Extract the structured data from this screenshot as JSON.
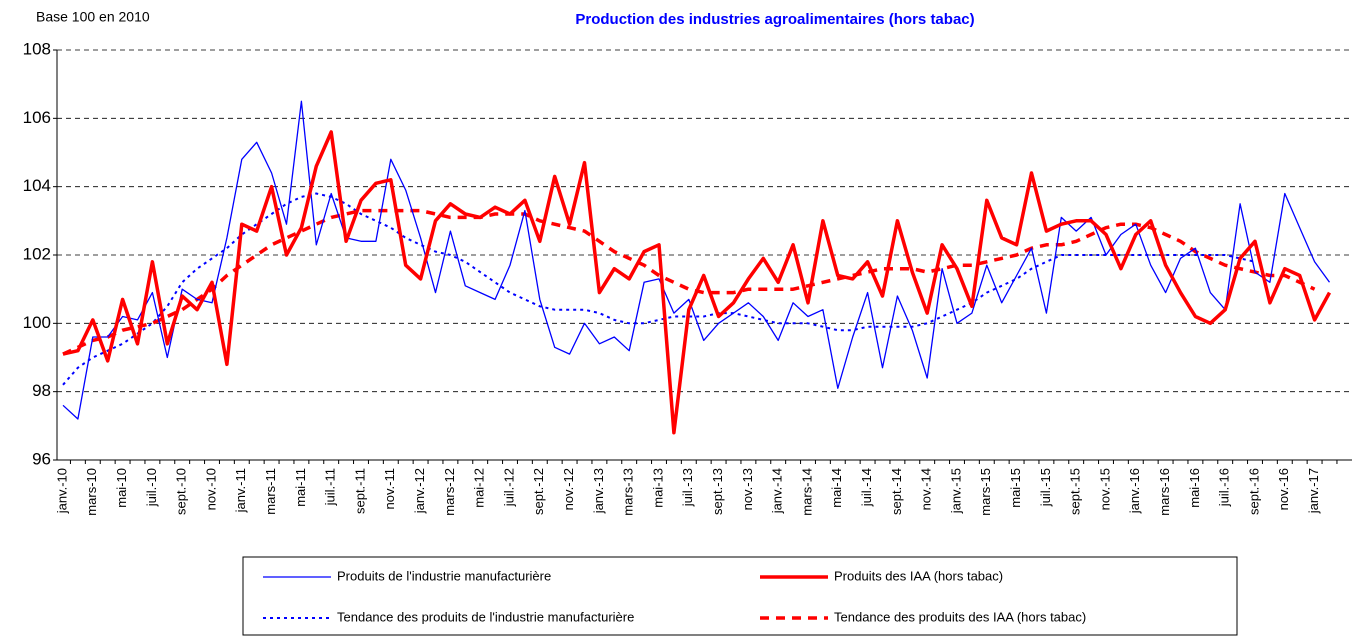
{
  "chart_data": {
    "type": "line",
    "title": "Production des industries agroalimentaires (hors tabac)",
    "y_label": "Base 100 en 2010",
    "categories": [
      "janv.-10",
      null,
      "mars-10",
      null,
      "mai-10",
      null,
      "juil.-10",
      null,
      "sept.-10",
      null,
      "nov.-10",
      null,
      "janv.-11",
      null,
      "mars-11",
      null,
      "mai-11",
      null,
      "juil.-11",
      null,
      "sept.-11",
      null,
      "nov.-11",
      null,
      "janv.-12",
      null,
      "mars-12",
      null,
      "mai-12",
      null,
      "juil.-12",
      null,
      "sept.-12",
      null,
      "nov.-12",
      null,
      "janv.-13",
      null,
      "mars-13",
      null,
      "mai-13",
      null,
      "juil.-13",
      null,
      "sept.-13",
      null,
      "nov.-13",
      null,
      "janv.-14",
      null,
      "mars-14",
      null,
      "mai-14",
      null,
      "juil.-14",
      null,
      "sept.-14",
      null,
      "nov.-14",
      null,
      "janv.-15",
      null,
      "mars-15",
      null,
      "mai-15",
      null,
      "juil.-15",
      null,
      "sept.-15",
      null,
      "nov.-15",
      null,
      "janv.-16",
      null,
      "mars-16",
      null,
      "mai-16",
      null,
      "juil.-16",
      null,
      "sept.-16",
      null,
      "nov.-16",
      null,
      "janv.-17",
      null
    ],
    "series": [
      {
        "name": "Produits de l'industrie manufacturière",
        "color": "#0000ff",
        "style": "solid",
        "width": 1.3,
        "values": [
          97.6,
          97.2,
          99.6,
          99.6,
          100.2,
          100.1,
          100.9,
          99.0,
          101.0,
          100.7,
          100.6,
          102.5,
          104.8,
          105.3,
          104.4,
          102.9,
          106.5,
          102.3,
          103.8,
          102.5,
          102.4,
          102.4,
          104.8,
          103.9,
          102.5,
          100.9,
          102.7,
          101.1,
          100.9,
          100.7,
          101.7,
          103.3,
          100.7,
          99.3,
          99.1,
          100.0,
          99.4,
          99.6,
          99.2,
          101.2,
          101.3,
          100.3,
          100.7,
          99.5,
          100.0,
          100.3,
          100.6,
          100.2,
          99.5,
          100.6,
          100.2,
          100.4,
          98.1,
          99.6,
          100.9,
          98.7,
          100.8,
          99.8,
          98.4,
          101.6,
          100.0,
          100.3,
          101.7,
          100.6,
          101.4,
          102.2,
          100.3,
          103.1,
          102.7,
          103.1,
          102.0,
          102.6,
          102.9,
          101.7,
          100.9,
          101.9,
          102.2,
          100.9,
          100.4,
          103.5,
          101.5,
          101.2,
          103.8,
          102.8,
          101.8,
          101.2
        ]
      },
      {
        "name": "Produits des IAA (hors tabac)",
        "color": "#ff0000",
        "style": "solid",
        "width": 3.5,
        "values": [
          99.1,
          99.2,
          100.1,
          98.9,
          100.7,
          99.4,
          101.8,
          99.4,
          100.8,
          100.4,
          101.2,
          98.8,
          102.9,
          102.7,
          104.0,
          102.0,
          102.8,
          104.6,
          105.6,
          102.4,
          103.6,
          104.1,
          104.2,
          101.7,
          101.3,
          103.0,
          103.5,
          103.2,
          103.1,
          103.4,
          103.2,
          103.6,
          102.4,
          104.3,
          102.9,
          104.7,
          100.9,
          101.6,
          101.3,
          102.1,
          102.3,
          96.8,
          100.4,
          101.4,
          100.2,
          100.6,
          101.3,
          101.9,
          101.2,
          102.3,
          100.6,
          103.0,
          101.4,
          101.3,
          101.8,
          100.8,
          103.0,
          101.5,
          100.3,
          102.3,
          101.6,
          100.5,
          103.6,
          102.5,
          102.3,
          104.4,
          102.7,
          102.9,
          103.0,
          103.0,
          102.6,
          101.6,
          102.6,
          103.0,
          101.7,
          100.9,
          100.2,
          100.0,
          100.4,
          101.9,
          102.4,
          100.6,
          101.6,
          101.4,
          100.1,
          100.9
        ]
      },
      {
        "name": "Tendance des produits de l'industrie manufacturière",
        "color": "#0000ff",
        "style": "dotted",
        "width": 2,
        "values": [
          98.2,
          98.7,
          99.0,
          99.2,
          99.4,
          99.7,
          100.0,
          100.5,
          101.2,
          101.6,
          101.9,
          102.2,
          102.6,
          102.9,
          103.2,
          103.5,
          103.7,
          103.8,
          103.7,
          103.5,
          103.2,
          103.0,
          102.8,
          102.5,
          102.3,
          102.1,
          102.0,
          101.8,
          101.5,
          101.2,
          100.9,
          100.7,
          100.5,
          100.4,
          100.4,
          100.4,
          100.3,
          100.1,
          100.0,
          100.0,
          100.1,
          100.2,
          100.2,
          100.2,
          100.3,
          100.3,
          100.2,
          100.1,
          100.0,
          100.0,
          100.0,
          99.9,
          99.8,
          99.8,
          99.9,
          99.9,
          99.9,
          99.9,
          100.0,
          100.2,
          100.4,
          100.6,
          100.9,
          101.1,
          101.3,
          101.6,
          101.8,
          102.0,
          102.0,
          102.0,
          102.0,
          102.0,
          102.0,
          102.0,
          102.0,
          102.0,
          102.0,
          102.0,
          102.0,
          101.9,
          101.8,
          null,
          null,
          null,
          null,
          null
        ]
      },
      {
        "name": "Tendance des produits des IAA (hors tabac)",
        "color": "#ff0000",
        "style": "dashed",
        "width": 3.5,
        "values": [
          99.1,
          99.3,
          99.5,
          99.6,
          99.8,
          99.9,
          100.0,
          100.2,
          100.4,
          100.7,
          101.0,
          101.4,
          101.7,
          102.0,
          102.3,
          102.5,
          102.7,
          102.9,
          103.1,
          103.2,
          103.3,
          103.3,
          103.3,
          103.3,
          103.3,
          103.2,
          103.1,
          103.1,
          103.1,
          103.2,
          103.2,
          103.2,
          103.0,
          102.9,
          102.8,
          102.7,
          102.4,
          102.1,
          101.9,
          101.7,
          101.4,
          101.2,
          101.0,
          100.9,
          100.9,
          100.9,
          101.0,
          101.0,
          101.0,
          101.0,
          101.1,
          101.2,
          101.3,
          101.4,
          101.5,
          101.6,
          101.6,
          101.6,
          101.5,
          101.6,
          101.7,
          101.7,
          101.8,
          101.9,
          102.0,
          102.2,
          102.3,
          102.3,
          102.4,
          102.6,
          102.8,
          102.9,
          102.9,
          102.8,
          102.6,
          102.4,
          102.1,
          101.9,
          101.7,
          101.6,
          101.5,
          101.4,
          101.4,
          101.2,
          101.0,
          null
        ]
      }
    ],
    "ylim": [
      96,
      108
    ],
    "yticks": [
      96,
      98,
      100,
      102,
      104,
      106,
      108
    ],
    "grid": true,
    "legend": "bottom"
  }
}
